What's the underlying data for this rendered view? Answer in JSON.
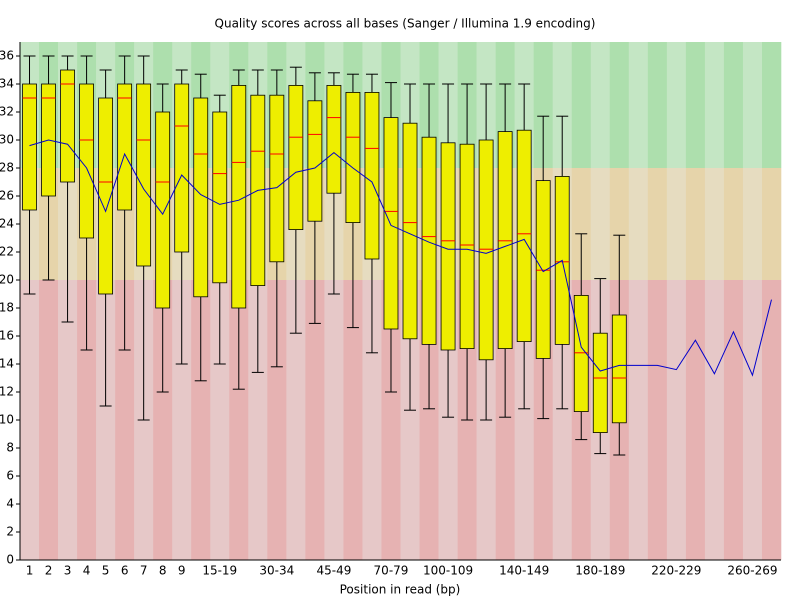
{
  "chart_data": {
    "type": "box",
    "title": "Quality scores across all bases (Sanger / Illumina 1.9 encoding)",
    "x_label": "Position in read (bp)",
    "categories": [
      "1",
      "2",
      "3",
      "4",
      "5",
      "6",
      "7",
      "8",
      "9",
      null,
      "15-19",
      null,
      null,
      "30-34",
      null,
      null,
      "45-49",
      null,
      null,
      "70-79",
      null,
      null,
      "100-109",
      null,
      null,
      null,
      "140-149",
      null,
      null,
      null,
      "180-189",
      null,
      null,
      null,
      "220-229",
      null,
      null,
      null,
      "260-269",
      null
    ],
    "whisker_low": [
      19,
      20,
      17,
      15,
      11,
      15,
      10,
      12,
      14,
      12.8,
      14,
      12.2,
      13.4,
      13.8,
      16.2,
      16.9,
      19,
      16.6,
      14.8,
      12,
      10.7,
      10.8,
      10.2,
      10,
      10,
      10.2,
      10.8,
      10.1,
      10.8,
      8.6,
      7.6,
      7.5,
      null,
      null,
      null,
      null,
      null,
      null,
      null,
      null
    ],
    "q1": [
      25,
      26,
      27,
      23,
      19,
      25,
      21,
      18,
      22,
      18.8,
      19.8,
      18,
      19.6,
      21.3,
      23.6,
      24.2,
      26.2,
      24.1,
      21.5,
      16.5,
      15.8,
      15.4,
      15,
      15.1,
      14.3,
      15.1,
      15.6,
      14.4,
      15.4,
      10.6,
      9.1,
      9.8,
      null,
      null,
      null,
      null,
      null,
      null,
      null,
      null
    ],
    "median": [
      33,
      33,
      34,
      30,
      27,
      33,
      30,
      27,
      31,
      29,
      27.6,
      28.4,
      29.2,
      29,
      30.2,
      30.4,
      31.6,
      30.2,
      29.4,
      24.9,
      24.1,
      23.1,
      22.8,
      22.5,
      22.2,
      22.8,
      23.3,
      20.7,
      21.3,
      14.8,
      13,
      13,
      null,
      null,
      null,
      null,
      null,
      null,
      null,
      null
    ],
    "q3": [
      34,
      34,
      35,
      34,
      33,
      34,
      34,
      32,
      34,
      33,
      32,
      33.9,
      33.2,
      33.2,
      33.9,
      32.8,
      33.9,
      33.4,
      33.4,
      31.6,
      31.2,
      30.2,
      29.8,
      29.7,
      30,
      30.6,
      30.7,
      27.1,
      27.4,
      18.9,
      16.2,
      17.5,
      null,
      null,
      null,
      null,
      null,
      null,
      null,
      null
    ],
    "whisker_high": [
      36,
      36,
      36,
      36,
      35,
      36,
      36,
      34,
      35,
      34.7,
      33.2,
      35,
      35,
      35,
      35.2,
      34.8,
      34.8,
      34.7,
      34.7,
      34.1,
      34,
      34,
      34,
      34,
      34,
      34,
      34,
      31.7,
      31.7,
      23.3,
      20.1,
      23.2,
      null,
      null,
      null,
      null,
      null,
      null,
      null,
      null
    ],
    "mean": [
      29.6,
      30,
      29.7,
      28,
      24.9,
      29,
      26.5,
      24.7,
      27.5,
      26.1,
      25.4,
      25.7,
      26.4,
      26.6,
      27.7,
      28,
      29.1,
      28,
      27,
      23.9,
      23.3,
      22.7,
      22.2,
      22.2,
      21.9,
      22.4,
      22.9,
      20.6,
      21.4,
      15.2,
      13.5,
      13.9,
      13.9,
      13.9,
      13.6,
      15.7,
      13.3,
      16.3,
      13.2,
      18.6
    ],
    "box_color": "#eeee00",
    "median_color": "#ff0000",
    "mean_color": "#0000cc",
    "bands": [
      {
        "from": 28,
        "to": 37,
        "colors": [
          "#c4e6c4",
          "#addfad"
        ]
      },
      {
        "from": 20,
        "to": 28,
        "colors": [
          "#e6dcc0",
          "#e6d4aa"
        ]
      },
      {
        "from": 0,
        "to": 20,
        "colors": [
          "#e6c8c8",
          "#e6b2b2"
        ]
      }
    ],
    "ylim": [
      0,
      37
    ],
    "yticks": [
      0,
      2,
      4,
      6,
      8,
      10,
      12,
      14,
      16,
      18,
      20,
      22,
      24,
      26,
      28,
      30,
      32,
      34,
      36
    ]
  }
}
